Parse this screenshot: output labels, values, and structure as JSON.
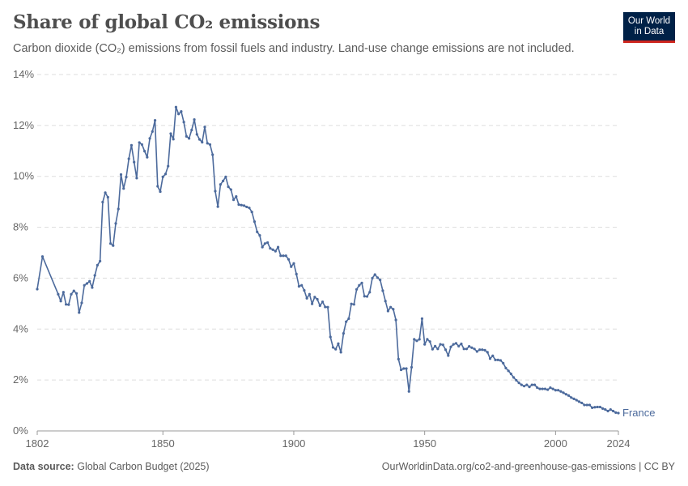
{
  "header": {
    "title": "Share of global CO₂ emissions",
    "subtitle": "Carbon dioxide (CO₂) emissions from fossil fuels and industry. Land-use change emissions are not included.",
    "logo_line1": "Our World",
    "logo_line2": "in Data"
  },
  "footer": {
    "source_label": "Data source:",
    "source_value": "Global Carbon Budget (2025)",
    "url_license": "OurWorldinData.org/co2-and-greenhouse-gas-emissions | CC BY"
  },
  "colors": {
    "line": "#4c6a9c",
    "grid": "#dddddd",
    "logo_bg": "#002147",
    "logo_accent": "#ce261e"
  },
  "chart_data": {
    "type": "line",
    "title": "Share of global CO₂ emissions",
    "xlabel": "",
    "ylabel": "",
    "xlim": [
      1802,
      2024
    ],
    "ylim": [
      0,
      14
    ],
    "y_ticks": [
      "0%",
      "2%",
      "4%",
      "6%",
      "8%",
      "10%",
      "12%",
      "14%"
    ],
    "y_tick_values": [
      0,
      2,
      4,
      6,
      8,
      10,
      12,
      14
    ],
    "x_ticks": [
      "1802",
      "1850",
      "1900",
      "1950",
      "2000",
      "2024"
    ],
    "x_tick_values": [
      1802,
      1850,
      1900,
      1950,
      2000,
      2024
    ],
    "grid": true,
    "series": [
      {
        "name": "France",
        "x": [
          1802,
          1804,
          1810,
          1811,
          1812,
          1813,
          1814,
          1815,
          1816,
          1817,
          1818,
          1819,
          1820,
          1821,
          1822,
          1823,
          1824,
          1825,
          1826,
          1827,
          1828,
          1829,
          1830,
          1831,
          1832,
          1833,
          1834,
          1835,
          1836,
          1837,
          1838,
          1839,
          1840,
          1841,
          1842,
          1843,
          1844,
          1845,
          1846,
          1847,
          1848,
          1849,
          1850,
          1851,
          1852,
          1853,
          1854,
          1855,
          1856,
          1857,
          1858,
          1859,
          1860,
          1861,
          1862,
          1863,
          1864,
          1865,
          1866,
          1867,
          1868,
          1869,
          1870,
          1871,
          1872,
          1873,
          1874,
          1875,
          1876,
          1877,
          1878,
          1879,
          1880,
          1881,
          1882,
          1883,
          1884,
          1885,
          1886,
          1887,
          1888,
          1889,
          1890,
          1891,
          1892,
          1893,
          1894,
          1895,
          1896,
          1897,
          1898,
          1899,
          1900,
          1901,
          1902,
          1903,
          1904,
          1905,
          1906,
          1907,
          1908,
          1909,
          1910,
          1911,
          1912,
          1913,
          1914,
          1915,
          1916,
          1917,
          1918,
          1919,
          1920,
          1921,
          1922,
          1923,
          1924,
          1925,
          1926,
          1927,
          1928,
          1929,
          1930,
          1931,
          1932,
          1933,
          1934,
          1935,
          1936,
          1937,
          1938,
          1939,
          1940,
          1941,
          1942,
          1943,
          1944,
          1945,
          1946,
          1947,
          1948,
          1949,
          1950,
          1951,
          1952,
          1953,
          1954,
          1955,
          1956,
          1957,
          1958,
          1959,
          1960,
          1961,
          1962,
          1963,
          1964,
          1965,
          1966,
          1967,
          1968,
          1969,
          1970,
          1971,
          1972,
          1973,
          1974,
          1975,
          1976,
          1977,
          1978,
          1979,
          1980,
          1981,
          1982,
          1983,
          1984,
          1985,
          1986,
          1987,
          1988,
          1989,
          1990,
          1991,
          1992,
          1993,
          1994,
          1995,
          1996,
          1997,
          1998,
          1999,
          2000,
          2001,
          2002,
          2003,
          2004,
          2005,
          2006,
          2007,
          2008,
          2009,
          2010,
          2011,
          2012,
          2013,
          2014,
          2015,
          2016,
          2017,
          2018,
          2019,
          2020,
          2021,
          2022,
          2023,
          2024
        ],
        "values": [
          5.57,
          6.85,
          5.37,
          5.1,
          5.45,
          4.97,
          4.96,
          5.37,
          5.5,
          5.4,
          4.65,
          5.03,
          5.72,
          5.79,
          5.88,
          5.63,
          6.11,
          6.51,
          6.67,
          8.99,
          9.36,
          9.18,
          7.36,
          7.28,
          8.15,
          8.72,
          10.07,
          9.52,
          9.97,
          10.69,
          11.22,
          10.56,
          9.93,
          11.33,
          11.25,
          10.99,
          10.75,
          11.49,
          11.76,
          12.2,
          9.61,
          9.4,
          9.98,
          10.09,
          10.4,
          11.68,
          11.46,
          12.72,
          12.45,
          12.55,
          12.13,
          11.57,
          11.49,
          11.82,
          12.23,
          11.65,
          11.45,
          11.34,
          11.94,
          11.3,
          11.25,
          10.85,
          9.42,
          8.81,
          9.68,
          9.82,
          9.98,
          9.59,
          9.48,
          9.08,
          9.21,
          8.89,
          8.87,
          8.85,
          8.8,
          8.76,
          8.6,
          8.22,
          7.82,
          7.68,
          7.22,
          7.36,
          7.4,
          7.17,
          7.12,
          7.06,
          7.22,
          6.88,
          6.88,
          6.88,
          6.74,
          6.45,
          6.58,
          6.16,
          5.68,
          5.72,
          5.52,
          5.21,
          5.37,
          4.99,
          5.26,
          5.17,
          4.92,
          5.07,
          4.87,
          4.86,
          3.69,
          3.28,
          3.21,
          3.43,
          3.09,
          3.83,
          4.29,
          4.41,
          4.99,
          4.97,
          5.56,
          5.72,
          5.81,
          5.29,
          5.28,
          5.45,
          6.0,
          6.14,
          6.02,
          5.93,
          5.51,
          5.1,
          4.71,
          4.86,
          4.78,
          4.36,
          2.82,
          2.4,
          2.45,
          2.45,
          1.55,
          2.5,
          3.6,
          3.54,
          3.6,
          4.41,
          3.4,
          3.6,
          3.51,
          3.21,
          3.33,
          3.22,
          3.4,
          3.38,
          3.19,
          2.96,
          3.3,
          3.4,
          3.44,
          3.33,
          3.42,
          3.22,
          3.22,
          3.32,
          3.27,
          3.22,
          3.12,
          3.19,
          3.19,
          3.17,
          3.09,
          2.84,
          2.95,
          2.79,
          2.79,
          2.77,
          2.66,
          2.47,
          2.36,
          2.24,
          2.1,
          1.99,
          1.89,
          1.81,
          1.76,
          1.81,
          1.73,
          1.81,
          1.81,
          1.7,
          1.65,
          1.65,
          1.65,
          1.62,
          1.7,
          1.65,
          1.6,
          1.6,
          1.55,
          1.5,
          1.44,
          1.39,
          1.31,
          1.26,
          1.21,
          1.15,
          1.1,
          1.02,
          1.02,
          1.02,
          0.91,
          0.93,
          0.94,
          0.94,
          0.88,
          0.84,
          0.78,
          0.84,
          0.78,
          0.72,
          0.7
        ]
      }
    ]
  }
}
